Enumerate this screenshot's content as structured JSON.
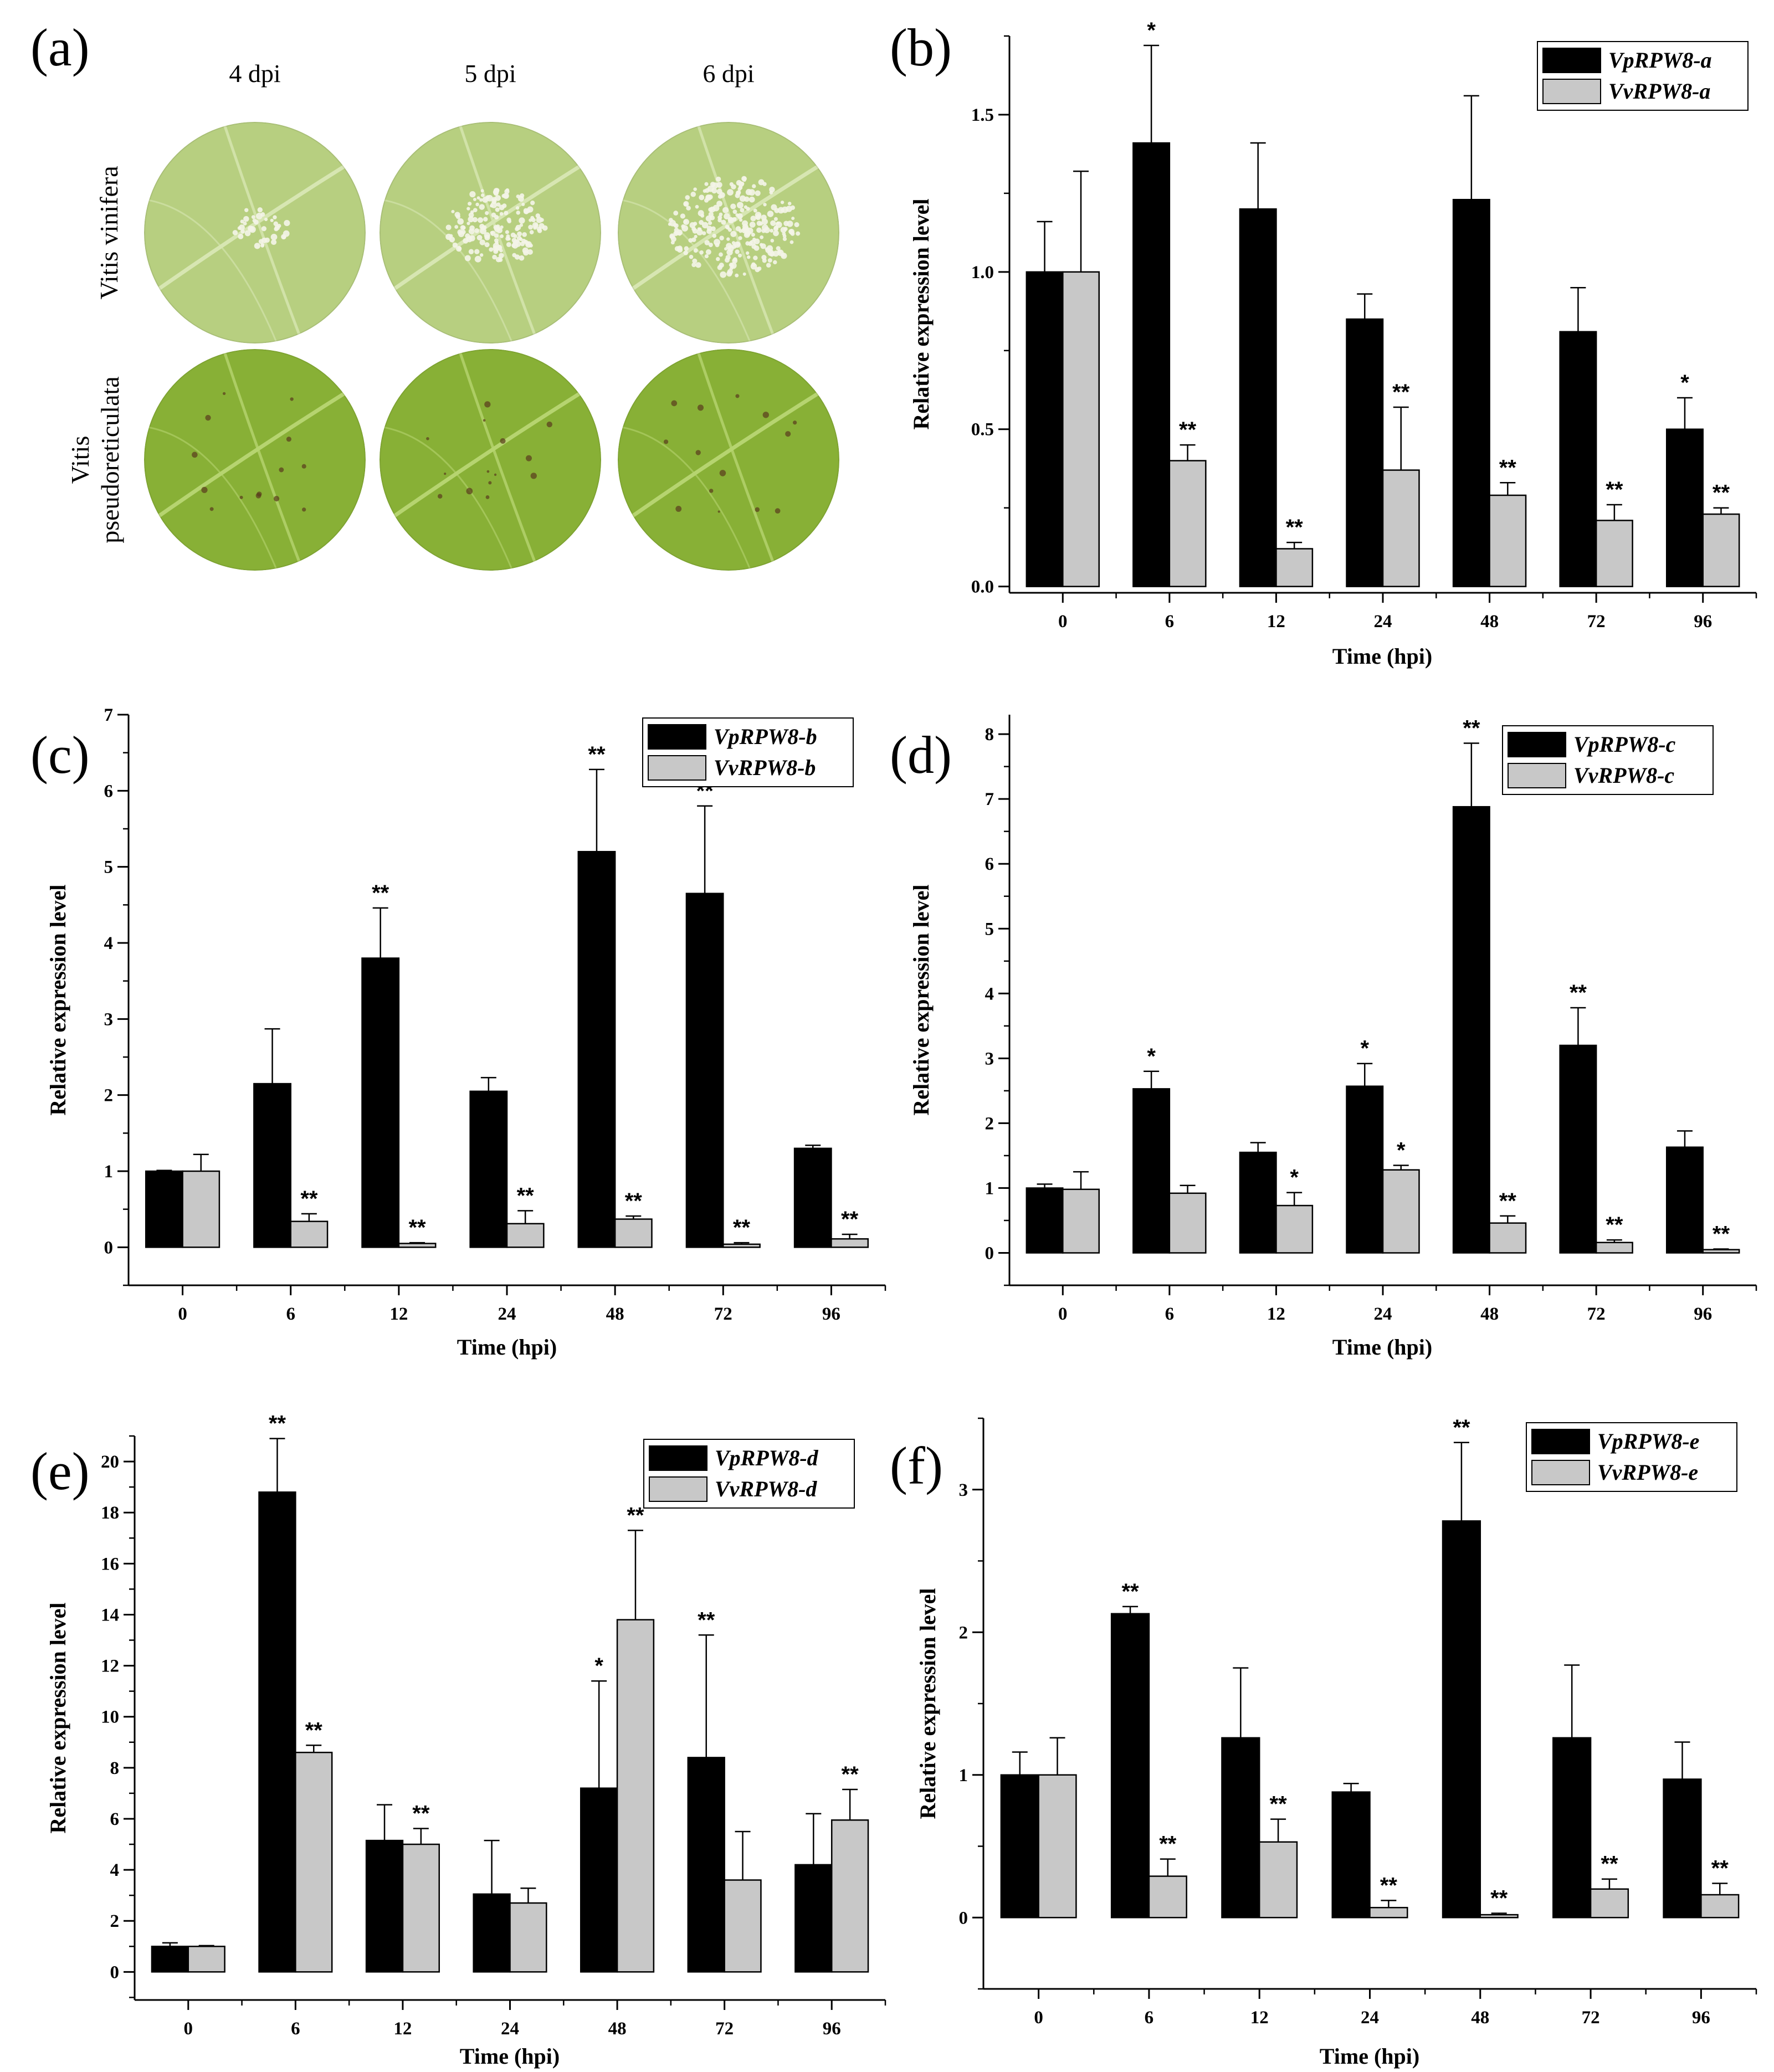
{
  "colors": {
    "vp": "#000000",
    "vv": "#c8c8c8",
    "leaf_vinifera": "#b7cf80",
    "leaf_pseudo": "#88b036",
    "vein_vinifera": "#d7e6b2",
    "vein_pseudo": "#b6d470"
  },
  "panel_a": {
    "letter": "(a)",
    "columns": [
      "4 dpi",
      "5 dpi",
      "6 dpi"
    ],
    "rows": [
      {
        "label_lines": [
          "Vitis vinifera"
        ],
        "spot_levels": [
          0.15,
          0.65,
          1.0
        ]
      },
      {
        "label_lines": [
          "Vitis",
          "pseudoreticulata"
        ],
        "spot_levels": [
          0,
          0,
          0
        ]
      }
    ]
  },
  "chart_data": [
    {
      "id": "b",
      "type": "bar",
      "letter": "(b)",
      "categories": [
        "0",
        "6",
        "12",
        "24",
        "48",
        "72",
        "96"
      ],
      "xlabel": "Time (hpi)",
      "ylabel": "Relative expression level",
      "ylim": [
        -0.02,
        1.75
      ],
      "yticks": [
        "0.0",
        "0.5",
        "1.0",
        "1.5"
      ],
      "ytick_values": [
        0,
        0.5,
        1.0,
        1.5
      ],
      "minor_step": 0.25,
      "legend_position": "top-right",
      "series": [
        {
          "name": "VpRPW8-a",
          "values": [
            1.0,
            1.41,
            1.2,
            0.85,
            1.23,
            0.81,
            0.5
          ],
          "errors": [
            0.16,
            0.31,
            0.21,
            0.08,
            0.33,
            0.14,
            0.1
          ],
          "sig": [
            "",
            "*",
            "",
            "",
            "",
            "",
            "*"
          ]
        },
        {
          "name": "VvRPW8-a",
          "values": [
            1.0,
            0.4,
            0.12,
            0.37,
            0.29,
            0.21,
            0.23
          ],
          "errors": [
            0.32,
            0.05,
            0.02,
            0.2,
            0.04,
            0.05,
            0.02
          ],
          "sig": [
            "",
            "**",
            "**",
            "**",
            "**",
            "**",
            "**"
          ]
        }
      ]
    },
    {
      "id": "c",
      "type": "bar",
      "letter": "(c)",
      "categories": [
        "0",
        "6",
        "12",
        "24",
        "48",
        "72",
        "96"
      ],
      "xlabel": "Time (hpi)",
      "ylabel": "Relative expression level",
      "ylim": [
        -0.5,
        7
      ],
      "yticks": [
        "0",
        "1",
        "2",
        "3",
        "4",
        "5",
        "6",
        "7"
      ],
      "ytick_values": [
        0,
        1,
        2,
        3,
        4,
        5,
        6,
        7
      ],
      "minor_step": 0.5,
      "legend_position": "top-right",
      "series": [
        {
          "name": "VpRPW8-b",
          "values": [
            1.0,
            2.15,
            3.8,
            2.05,
            5.2,
            4.65,
            1.3
          ],
          "errors": [
            0.01,
            0.72,
            0.66,
            0.18,
            1.08,
            1.15,
            0.04
          ],
          "sig": [
            "",
            "",
            "**",
            "",
            "**",
            "**",
            ""
          ]
        },
        {
          "name": "VvRPW8-b",
          "values": [
            1.0,
            0.34,
            0.05,
            0.31,
            0.37,
            0.04,
            0.11
          ],
          "errors": [
            0.22,
            0.1,
            0.01,
            0.17,
            0.04,
            0.02,
            0.06
          ],
          "sig": [
            "",
            "**",
            "**",
            "**",
            "**",
            "**",
            "**"
          ]
        }
      ]
    },
    {
      "id": "d",
      "type": "bar",
      "letter": "(d)",
      "categories": [
        "0",
        "6",
        "12",
        "24",
        "48",
        "72",
        "96"
      ],
      "xlabel": "Time (hpi)",
      "ylabel": "Relative expression level",
      "ylim": [
        -0.5,
        8.3
      ],
      "yticks": [
        "0",
        "1",
        "2",
        "3",
        "4",
        "5",
        "6",
        "7",
        "8"
      ],
      "ytick_values": [
        0,
        1,
        2,
        3,
        4,
        5,
        6,
        7,
        8
      ],
      "minor_step": 0.5,
      "legend_position": "top-right",
      "series": [
        {
          "name": "VpRPW8-c",
          "values": [
            1.0,
            2.53,
            1.55,
            2.57,
            6.88,
            3.2,
            1.63
          ],
          "errors": [
            0.06,
            0.27,
            0.15,
            0.35,
            0.98,
            0.58,
            0.25
          ],
          "sig": [
            "",
            "*",
            "",
            "*",
            "**",
            "**",
            ""
          ]
        },
        {
          "name": "VvRPW8-c",
          "values": [
            0.98,
            0.92,
            0.73,
            1.28,
            0.46,
            0.16,
            0.05
          ],
          "errors": [
            0.27,
            0.12,
            0.2,
            0.07,
            0.11,
            0.04,
            0.01
          ],
          "sig": [
            "",
            "",
            "*",
            "*",
            "**",
            "**",
            "**"
          ]
        }
      ]
    },
    {
      "id": "e",
      "type": "bar",
      "letter": "(e)",
      "categories": [
        "0",
        "6",
        "12",
        "24",
        "48",
        "72",
        "96"
      ],
      "xlabel": "Time (hpi)",
      "ylabel": "Relative expression level",
      "ylim": [
        -1.1,
        21
      ],
      "yticks": [
        "0",
        "2",
        "4",
        "6",
        "8",
        "10",
        "12",
        "14",
        "16",
        "18",
        "20"
      ],
      "ytick_values": [
        0,
        2,
        4,
        6,
        8,
        10,
        12,
        14,
        16,
        18,
        20
      ],
      "minor_step": 1,
      "legend_position": "top-right",
      "series": [
        {
          "name": "VpRPW8-d",
          "values": [
            1.0,
            18.8,
            5.15,
            3.05,
            7.2,
            8.4,
            4.2
          ],
          "errors": [
            0.14,
            2.1,
            1.4,
            2.1,
            4.2,
            4.8,
            2.0
          ],
          "sig": [
            "",
            "**",
            "",
            "",
            "*",
            "**",
            ""
          ]
        },
        {
          "name": "VvRPW8-d",
          "values": [
            1.0,
            8.6,
            5.0,
            2.7,
            13.8,
            3.6,
            5.95
          ],
          "errors": [
            0.03,
            0.28,
            0.62,
            0.58,
            3.5,
            1.9,
            1.2
          ],
          "sig": [
            "",
            "**",
            "**",
            "",
            "**",
            "",
            "**"
          ]
        }
      ]
    },
    {
      "id": "f",
      "type": "bar",
      "letter": "(f)",
      "categories": [
        "0",
        "6",
        "12",
        "24",
        "48",
        "72",
        "96"
      ],
      "xlabel": "Time (hpi)",
      "ylabel": "Relative expression level",
      "ylim": [
        -0.5,
        3.5
      ],
      "yticks": [
        "0",
        "1",
        "2",
        "3"
      ],
      "ytick_values": [
        0,
        1,
        2,
        3
      ],
      "minor_step": 0.5,
      "legend_position": "top-right",
      "series": [
        {
          "name": "VpRPW8-e",
          "values": [
            1.0,
            2.13,
            1.26,
            0.88,
            2.78,
            1.26,
            0.97
          ],
          "errors": [
            0.16,
            0.05,
            0.49,
            0.06,
            0.55,
            0.51,
            0.26
          ],
          "sig": [
            "",
            "**",
            "",
            "",
            "**",
            "",
            ""
          ]
        },
        {
          "name": "VvRPW8-e",
          "values": [
            1.0,
            0.29,
            0.53,
            0.07,
            0.02,
            0.2,
            0.16
          ],
          "errors": [
            0.26,
            0.12,
            0.16,
            0.05,
            0.01,
            0.07,
            0.08
          ],
          "sig": [
            "",
            "**",
            "**",
            "**",
            "**",
            "**",
            "**"
          ]
        }
      ]
    }
  ]
}
